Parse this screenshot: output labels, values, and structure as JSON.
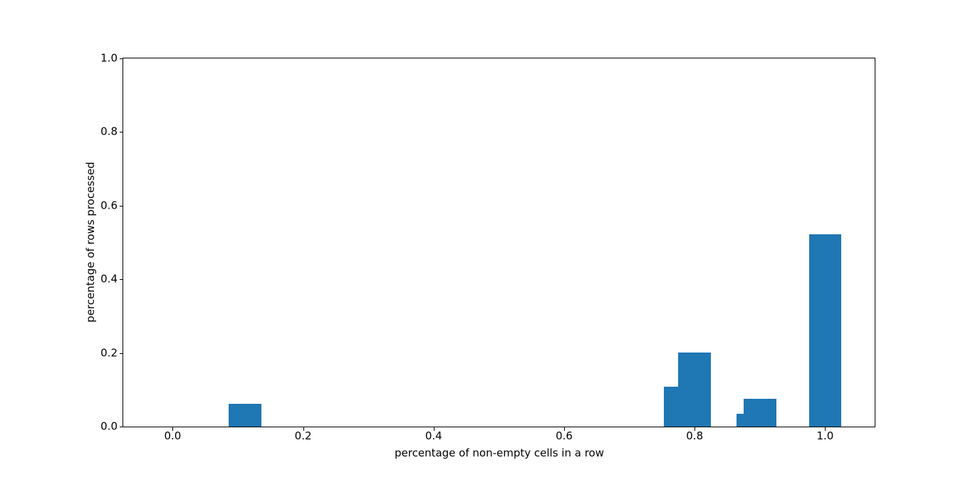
{
  "figure": {
    "background": "#ffffff"
  },
  "chart_data": {
    "type": "bar",
    "title": "",
    "xlabel": "percentage of non-empty cells in a row",
    "ylabel": "percentage of rows processed",
    "bar_color": "#1f77b4",
    "bar_width": 0.05,
    "x": [
      0.111,
      0.778,
      0.8,
      0.889,
      0.9,
      1.0
    ],
    "values": [
      0.062,
      0.109,
      0.202,
      0.034,
      0.076,
      0.523
    ],
    "xlim": [
      -0.0758,
      1.076
    ],
    "ylim": [
      0,
      1.0
    ],
    "xticks": [
      0.0,
      0.2,
      0.4,
      0.6,
      0.8,
      1.0
    ],
    "xtick_labels": [
      "0.0",
      "0.2",
      "0.4",
      "0.6",
      "0.8",
      "1.0"
    ],
    "yticks": [
      0.0,
      0.2,
      0.4,
      0.6,
      0.8,
      1.0
    ],
    "ytick_labels": [
      "0.0",
      "0.2",
      "0.4",
      "0.6",
      "0.8",
      "1.0"
    ],
    "grid": false,
    "legend": false,
    "spine_color": "#000000",
    "text_color": "#000000"
  }
}
